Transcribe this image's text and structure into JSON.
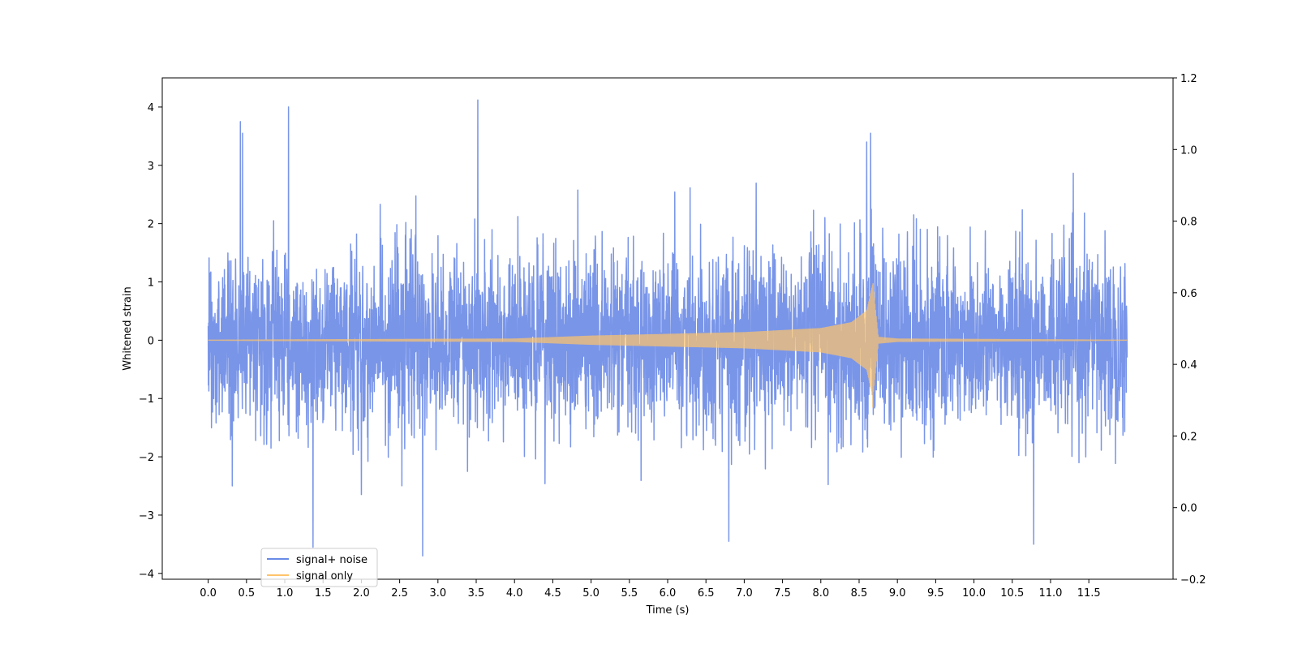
{
  "chart_data": {
    "type": "line",
    "title": "",
    "xlabel": "Time (s)",
    "ylabel": "Whitened strain",
    "y2label": "",
    "xlim": [
      -0.6,
      12.6
    ],
    "ylim": [
      -4.1,
      4.5
    ],
    "y2lim": [
      -0.2,
      1.2
    ],
    "x_ticks": [
      0.0,
      0.5,
      1.0,
      1.5,
      2.0,
      2.5,
      3.0,
      3.5,
      4.0,
      4.5,
      5.0,
      5.5,
      6.0,
      6.5,
      7.0,
      7.5,
      8.0,
      8.5,
      9.0,
      9.5,
      10.0,
      10.5,
      11.0,
      11.5
    ],
    "x_tick_labels": [
      "0.0",
      "0.5",
      "1.0",
      "1.5",
      "2.0",
      "2.5",
      "3.0",
      "3.5",
      "4.0",
      "4.5",
      "5.0",
      "5.5",
      "6.0",
      "6.5",
      "7.0",
      "7.5",
      "8.0",
      "8.5",
      "9.0",
      "9.5",
      "10.0",
      "10.5",
      "11.0",
      "11.5"
    ],
    "y_ticks": [
      -4,
      -3,
      -2,
      -1,
      0,
      1,
      2,
      3,
      4
    ],
    "y_tick_labels": [
      "−4",
      "−3",
      "−2",
      "−1",
      "0",
      "1",
      "2",
      "3",
      "4"
    ],
    "y2_ticks": [
      -0.2,
      0.0,
      0.2,
      0.4,
      0.6,
      0.8,
      1.0,
      1.2
    ],
    "y2_tick_labels": [
      "−0.2",
      "0.0",
      "0.2",
      "0.4",
      "0.6",
      "0.8",
      "1.0",
      "1.2"
    ],
    "grid": false,
    "legend_position": "lower-left",
    "series": [
      {
        "name": "signal+ noise",
        "color": "#6a8ae6",
        "x_range": [
          0.0,
          12.0
        ],
        "std": 0.75,
        "peak_x": [
          0.42,
          0.45,
          1.05,
          1.37,
          2.8,
          3.52,
          6.8,
          8.6,
          8.65,
          10.78
        ],
        "peak_y": [
          3.75,
          3.55,
          4.0,
          -3.55,
          -3.7,
          4.12,
          -3.45,
          3.4,
          3.55,
          -3.5
        ]
      },
      {
        "name": "signal only",
        "color": "#ffc46b",
        "x_range": [
          0.0,
          12.0
        ],
        "merger_x": 8.68,
        "merger_peak_high": 0.97,
        "merger_peak_low": -1.15,
        "envelope_x": [
          0.0,
          4.0,
          5.0,
          6.0,
          7.0,
          8.0,
          8.4,
          8.6,
          8.68,
          8.75,
          9.0,
          12.0
        ],
        "envelope_y": [
          0.0,
          0.02,
          0.07,
          0.1,
          0.13,
          0.2,
          0.3,
          0.5,
          0.97,
          0.05,
          0.02,
          0.0
        ]
      }
    ]
  }
}
